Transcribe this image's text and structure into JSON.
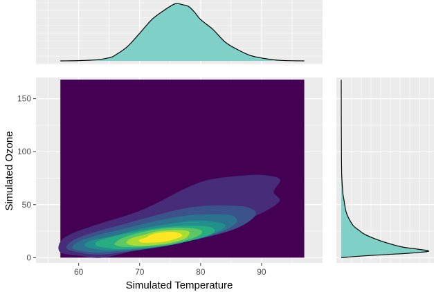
{
  "chart_data": {
    "type": "density",
    "title": "",
    "xlabel": "Simulated Temperature",
    "ylabel": "Simulated Ozone",
    "xlim": [
      53,
      100
    ],
    "ylim": [
      -5,
      170
    ],
    "x_ticks": [
      60,
      70,
      80,
      90
    ],
    "y_ticks": [
      0,
      50,
      100,
      150
    ],
    "x_tick_labels": [
      "60",
      "70",
      "80",
      "90"
    ],
    "y_tick_labels": [
      "0",
      "50",
      "100",
      "150"
    ],
    "panel_background": "#ebebeb",
    "gridlines": true,
    "main_panel": {
      "kind": "filled-2d-density-contours",
      "raster_extent": {
        "x": [
          57,
          97
        ],
        "y": [
          0,
          168
        ]
      },
      "palette": "viridis",
      "levels": [
        {
          "color": "#440154",
          "region": "background"
        },
        {
          "color": "#472c7a",
          "region": [
            [
              64,
              0
            ],
            [
              70,
              8
            ],
            [
              78,
              18
            ],
            [
              84,
              28
            ],
            [
              88,
              37
            ],
            [
              91,
              45
            ],
            [
              93,
              54
            ],
            [
              92,
              62
            ],
            [
              93,
              74
            ],
            [
              90,
              78
            ],
            [
              86,
              77
            ],
            [
              81,
              73
            ],
            [
              77,
              64
            ],
            [
              73,
              52
            ],
            [
              69,
              42
            ],
            [
              64,
              33
            ],
            [
              59,
              23
            ],
            [
              57,
              15
            ],
            [
              57,
              5
            ],
            [
              60,
              2
            ]
          ]
        },
        {
          "color": "#3b528b",
          "region": [
            [
              64,
              3
            ],
            [
              72,
              9
            ],
            [
              80,
              18
            ],
            [
              86,
              28
            ],
            [
              89,
              40
            ],
            [
              88,
              47
            ],
            [
              85,
              49
            ],
            [
              81,
              49
            ],
            [
              77,
              46
            ],
            [
              72,
              39
            ],
            [
              67,
              31
            ],
            [
              62,
              23
            ],
            [
              59,
              16
            ],
            [
              58,
              9
            ],
            [
              60,
              5
            ]
          ]
        },
        {
          "color": "#2c728e",
          "region": [
            [
              64,
              5
            ],
            [
              72,
              9
            ],
            [
              79,
              17
            ],
            [
              84,
              26
            ],
            [
              86,
              34
            ],
            [
              85,
              40
            ],
            [
              82,
              41
            ],
            [
              78,
              40
            ],
            [
              73,
              35
            ],
            [
              68,
              28
            ],
            [
              63,
              21
            ],
            [
              60,
              15
            ],
            [
              59,
              9
            ],
            [
              61,
              6
            ]
          ]
        },
        {
          "color": "#21908c",
          "region": [
            [
              66,
              7
            ],
            [
              73,
              10
            ],
            [
              79,
              17
            ],
            [
              83,
              25
            ],
            [
              84,
              31
            ],
            [
              82,
              34
            ],
            [
              79,
              35
            ],
            [
              75,
              32
            ],
            [
              70,
              27
            ],
            [
              66,
              21
            ],
            [
              62,
              16
            ],
            [
              61,
              11
            ],
            [
              63,
              8
            ]
          ]
        },
        {
          "color": "#27ad81",
          "region": [
            [
              67,
              8
            ],
            [
              74,
              11
            ],
            [
              79,
              17
            ],
            [
              82,
              23
            ],
            [
              82,
              28
            ],
            [
              80,
              30
            ],
            [
              77,
              30
            ],
            [
              73,
              28
            ],
            [
              69,
              24
            ],
            [
              65,
              19
            ],
            [
              63,
              15
            ],
            [
              63,
              11
            ],
            [
              65,
              9
            ]
          ]
        },
        {
          "color": "#5dc863",
          "region": [
            [
              68,
              10
            ],
            [
              74,
              12
            ],
            [
              78,
              17
            ],
            [
              80,
              22
            ],
            [
              80,
              26
            ],
            [
              78,
              28
            ],
            [
              75,
              28
            ],
            [
              72,
              26
            ],
            [
              69,
              22
            ],
            [
              67,
              18
            ],
            [
              66,
              14
            ],
            [
              66,
              12
            ]
          ]
        },
        {
          "color": "#aadc32",
          "region": [
            [
              70,
              11
            ],
            [
              74,
              13
            ],
            [
              77,
              17
            ],
            [
              78,
              21
            ],
            [
              78,
              25
            ],
            [
              76,
              26
            ],
            [
              73,
              25
            ],
            [
              71,
              22
            ],
            [
              69,
              19
            ],
            [
              68,
              16
            ],
            [
              68,
              13
            ]
          ]
        },
        {
          "color": "#fde725",
          "region": [
            [
              71,
              14
            ],
            [
              74,
              15
            ],
            [
              76,
              18
            ],
            [
              77,
              21
            ],
            [
              76,
              24
            ],
            [
              74,
              24
            ],
            [
              72,
              22
            ],
            [
              71,
              19
            ],
            [
              70,
              17
            ],
            [
              70,
              15
            ]
          ]
        }
      ]
    },
    "top_marginal": {
      "kind": "density",
      "variable": "Simulated Temperature",
      "fill": "#7fd1c8",
      "x": [
        57,
        60,
        63,
        65,
        66,
        68,
        70,
        72,
        74,
        75,
        76,
        77,
        78,
        79,
        80,
        82,
        84,
        86,
        88,
        90,
        93,
        97
      ],
      "density": [
        0.0,
        0.005,
        0.02,
        0.055,
        0.1,
        0.25,
        0.48,
        0.72,
        0.88,
        0.95,
        1.0,
        0.98,
        0.95,
        0.85,
        0.72,
        0.55,
        0.33,
        0.2,
        0.1,
        0.05,
        0.01,
        0.0
      ]
    },
    "right_marginal": {
      "kind": "density",
      "variable": "Simulated Ozone",
      "orientation": "horizontal",
      "fill": "#7fd1c8",
      "y": [
        0,
        2,
        4,
        6,
        8,
        10,
        14,
        18,
        22,
        26,
        30,
        35,
        40,
        45,
        50,
        55,
        60,
        65,
        70,
        80,
        100,
        130,
        168
      ],
      "density": [
        0.0,
        0.32,
        0.75,
        1.0,
        0.88,
        0.7,
        0.52,
        0.38,
        0.27,
        0.2,
        0.14,
        0.1,
        0.07,
        0.05,
        0.04,
        0.03,
        0.02,
        0.015,
        0.01,
        0.005,
        0.002,
        0.001,
        0.0
      ]
    }
  }
}
